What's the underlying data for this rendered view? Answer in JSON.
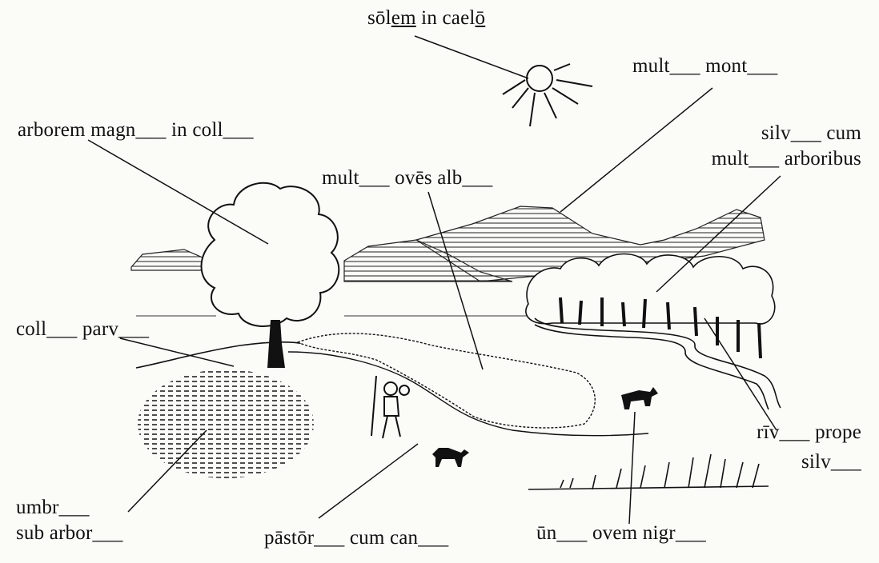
{
  "labels": {
    "sun": {
      "pre": "sōl",
      "mid": "em",
      "post": " in cael",
      "end": "ō"
    },
    "mountains": "mult___ mont___",
    "big_tree": "arborem magn___ in coll___",
    "forest_l1": "silv___ cum",
    "forest_l2": "mult___ arboribus",
    "sheep": "mult___ ovēs alb___",
    "hill": "coll___ parv___",
    "river_l1": "rīv___ prope",
    "river_l2": "silv___",
    "shade_l1": "umbr___",
    "shade_l2": "sub arbor___",
    "shepherd": "pāstōr___ cum can___",
    "black_sheep": "ūn___ ovem nigr___"
  }
}
